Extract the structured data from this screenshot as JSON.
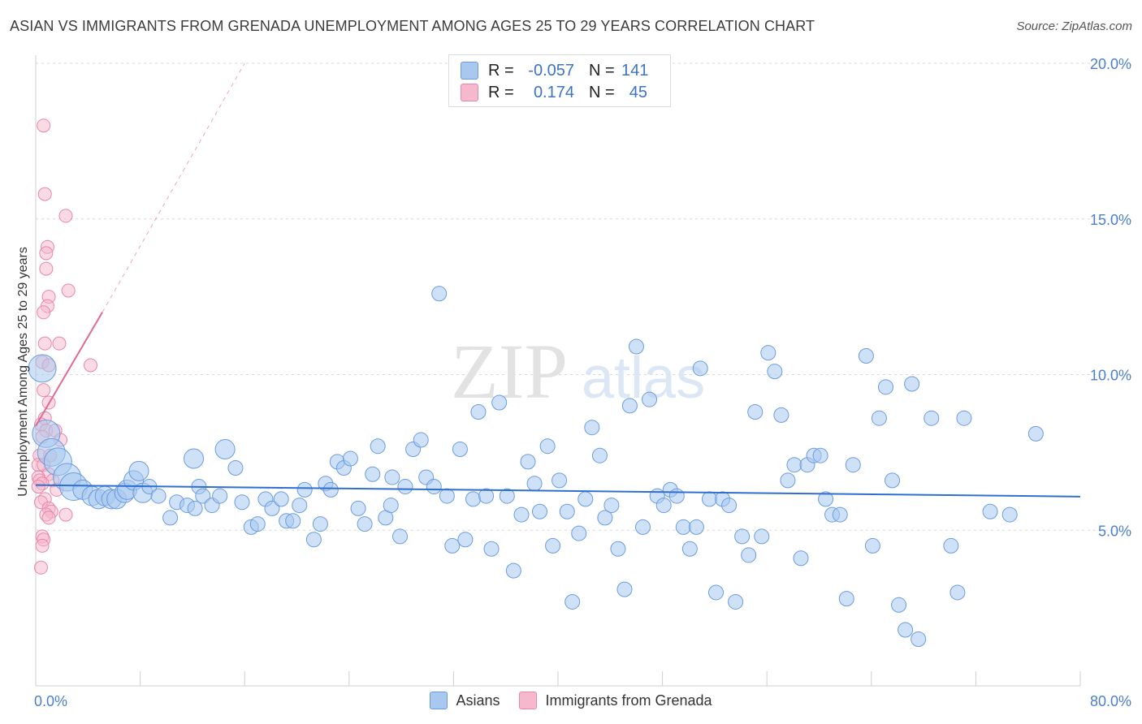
{
  "title": "ASIAN VS IMMIGRANTS FROM GRENADA UNEMPLOYMENT AMONG AGES 25 TO 29 YEARS CORRELATION CHART",
  "source": "Source: ZipAtlas.com",
  "watermark": {
    "zip": "ZIP",
    "atlas": "atlas"
  },
  "legend": {
    "rows": [
      {
        "r_label": "R =",
        "r_value": "-0.057",
        "n_label": "N =",
        "n_value": "141",
        "color": "#a8c8ef",
        "border": "#6b9ce0"
      },
      {
        "r_label": "R =",
        "r_value": "0.174",
        "n_label": "N =",
        "n_value": "45",
        "color": "#f6b8cc",
        "border": "#e887a6"
      }
    ]
  },
  "bottom_legend": [
    {
      "label": "Asians",
      "color": "#a8c8ef",
      "border": "#6b9ce0"
    },
    {
      "label": "Immigrants from Grenada",
      "color": "#f6b8cc",
      "border": "#e887a6"
    }
  ],
  "colors": {
    "blue_fill": "#a8c8ef",
    "blue_stroke": "#6b9ce0",
    "blue_line": "#2f6fd0",
    "pink_fill": "#f6b8cc",
    "pink_stroke": "#e887a6",
    "pink_line": "#e06a90",
    "grid": "#d8d8d8",
    "tick": "#4a7fd0"
  },
  "chart_data": {
    "type": "scatter",
    "title": "ASIAN VS IMMIGRANTS FROM GRENADA UNEMPLOYMENT AMONG AGES 25 TO 29 YEARS CORRELATION CHART",
    "xlabel": "",
    "ylabel": "Unemployment Among Ages 25 to 29 years",
    "xlim": [
      0,
      80
    ],
    "ylim": [
      0,
      20
    ],
    "x_tick_labels": [
      "0.0%",
      "80.0%"
    ],
    "y_ticks": [
      5,
      10,
      15,
      20
    ],
    "y_tick_labels": [
      "5.0%",
      "10.0%",
      "15.0%",
      "20.0%"
    ],
    "series": [
      {
        "name": "Asians",
        "r": -0.057,
        "n": 141,
        "trend": {
          "x": [
            0,
            80
          ],
          "y": [
            6.45,
            6.08
          ]
        },
        "points": [
          [
            0.5,
            10.2,
            3
          ],
          [
            0.8,
            8.1,
            3
          ],
          [
            1.2,
            7.5,
            3
          ],
          [
            1.7,
            7.2,
            3
          ],
          [
            2.4,
            6.7,
            3
          ],
          [
            2.9,
            6.4,
            3
          ],
          [
            3.6,
            6.3,
            2
          ],
          [
            4.3,
            6.1,
            2
          ],
          [
            4.8,
            6.0,
            2
          ],
          [
            5.3,
            6.1,
            2
          ],
          [
            5.8,
            6.0,
            2
          ],
          [
            6.2,
            6.0,
            2
          ],
          [
            6.8,
            6.2,
            2
          ],
          [
            7.0,
            6.3,
            2
          ],
          [
            7.5,
            6.6,
            2
          ],
          [
            7.9,
            6.9,
            2
          ],
          [
            8.2,
            6.2,
            2
          ],
          [
            8.7,
            6.4,
            1
          ],
          [
            9.4,
            6.1,
            1
          ],
          [
            10.3,
            5.4,
            1
          ],
          [
            10.8,
            5.9,
            1
          ],
          [
            11.6,
            5.8,
            1
          ],
          [
            12.1,
            7.3,
            2
          ],
          [
            12.5,
            6.4,
            1
          ],
          [
            12.8,
            6.1,
            1
          ],
          [
            13.5,
            5.8,
            1
          ],
          [
            14.1,
            6.1,
            1
          ],
          [
            14.5,
            7.6,
            2
          ],
          [
            15.3,
            7.0,
            1
          ],
          [
            15.8,
            5.9,
            1
          ],
          [
            16.5,
            5.1,
            1
          ],
          [
            17.0,
            5.2,
            1
          ],
          [
            17.6,
            6.0,
            1
          ],
          [
            18.1,
            5.7,
            1
          ],
          [
            18.8,
            6.0,
            1
          ],
          [
            19.2,
            5.3,
            1
          ],
          [
            19.7,
            5.3,
            1
          ],
          [
            20.2,
            5.8,
            1
          ],
          [
            20.6,
            6.3,
            1
          ],
          [
            21.3,
            4.7,
            1
          ],
          [
            21.8,
            5.2,
            1
          ],
          [
            22.2,
            6.5,
            1
          ],
          [
            22.6,
            6.3,
            1
          ],
          [
            23.1,
            7.2,
            1
          ],
          [
            23.6,
            7.0,
            1
          ],
          [
            24.1,
            7.3,
            1
          ],
          [
            24.7,
            5.7,
            1
          ],
          [
            25.2,
            5.2,
            1
          ],
          [
            25.8,
            6.8,
            1
          ],
          [
            26.2,
            7.7,
            1
          ],
          [
            26.8,
            5.4,
            1
          ],
          [
            27.3,
            6.7,
            1
          ],
          [
            27.9,
            4.8,
            1
          ],
          [
            28.3,
            6.4,
            1
          ],
          [
            28.9,
            7.6,
            1
          ],
          [
            29.5,
            7.9,
            1
          ],
          [
            29.9,
            6.7,
            1
          ],
          [
            30.5,
            6.4,
            1
          ],
          [
            30.9,
            12.6,
            1
          ],
          [
            31.5,
            6.1,
            1
          ],
          [
            31.9,
            4.5,
            1
          ],
          [
            32.5,
            7.6,
            1
          ],
          [
            32.9,
            4.7,
            1
          ],
          [
            33.5,
            6.0,
            1
          ],
          [
            33.9,
            8.8,
            1
          ],
          [
            34.5,
            6.1,
            1
          ],
          [
            34.9,
            4.4,
            1
          ],
          [
            35.5,
            9.1,
            1
          ],
          [
            36.1,
            6.1,
            1
          ],
          [
            36.6,
            3.7,
            1
          ],
          [
            37.2,
            5.5,
            1
          ],
          [
            37.7,
            7.2,
            1
          ],
          [
            38.2,
            6.5,
            1
          ],
          [
            38.6,
            5.6,
            1
          ],
          [
            39.2,
            7.7,
            1
          ],
          [
            39.6,
            4.5,
            1
          ],
          [
            40.1,
            6.6,
            1
          ],
          [
            40.7,
            5.6,
            1
          ],
          [
            41.1,
            2.7,
            1
          ],
          [
            41.6,
            4.9,
            1
          ],
          [
            42.1,
            6.0,
            1
          ],
          [
            42.6,
            8.3,
            1
          ],
          [
            43.2,
            7.4,
            1
          ],
          [
            43.6,
            5.4,
            1
          ],
          [
            44.1,
            5.8,
            1
          ],
          [
            44.6,
            4.4,
            1
          ],
          [
            45.1,
            3.1,
            1
          ],
          [
            45.5,
            9.0,
            1
          ],
          [
            46.0,
            10.9,
            1
          ],
          [
            46.5,
            5.1,
            1
          ],
          [
            47.0,
            9.2,
            1
          ],
          [
            47.6,
            6.1,
            1
          ],
          [
            48.1,
            5.8,
            1
          ],
          [
            48.6,
            6.3,
            1
          ],
          [
            49.1,
            6.1,
            1
          ],
          [
            49.6,
            5.1,
            1
          ],
          [
            50.1,
            4.4,
            1
          ],
          [
            50.6,
            5.1,
            1
          ],
          [
            50.9,
            10.2,
            1
          ],
          [
            51.6,
            6.0,
            1
          ],
          [
            52.1,
            3.0,
            1
          ],
          [
            52.6,
            6.0,
            1
          ],
          [
            53.1,
            5.8,
            1
          ],
          [
            53.6,
            2.7,
            1
          ],
          [
            54.1,
            4.8,
            1
          ],
          [
            54.6,
            4.2,
            1
          ],
          [
            55.1,
            8.8,
            1
          ],
          [
            55.6,
            4.8,
            1
          ],
          [
            56.1,
            10.7,
            1
          ],
          [
            56.6,
            10.1,
            1
          ],
          [
            57.1,
            8.7,
            1
          ],
          [
            57.6,
            6.6,
            1
          ],
          [
            58.1,
            7.1,
            1
          ],
          [
            58.6,
            4.1,
            1
          ],
          [
            59.1,
            7.1,
            1
          ],
          [
            59.6,
            7.4,
            1
          ],
          [
            60.1,
            7.4,
            1
          ],
          [
            60.5,
            6.0,
            1
          ],
          [
            61.0,
            5.5,
            1
          ],
          [
            61.6,
            5.5,
            1
          ],
          [
            62.1,
            2.8,
            1
          ],
          [
            62.6,
            7.1,
            1
          ],
          [
            63.6,
            10.6,
            1
          ],
          [
            64.1,
            4.5,
            1
          ],
          [
            64.6,
            8.6,
            1
          ],
          [
            65.1,
            9.6,
            1
          ],
          [
            65.6,
            6.6,
            1
          ],
          [
            66.1,
            2.6,
            1
          ],
          [
            66.6,
            1.8,
            1
          ],
          [
            67.1,
            9.7,
            1
          ],
          [
            67.6,
            1.5,
            1
          ],
          [
            68.6,
            8.6,
            1
          ],
          [
            70.1,
            4.5,
            1
          ],
          [
            71.1,
            8.6,
            1
          ],
          [
            70.6,
            3.0,
            1
          ],
          [
            73.1,
            5.6,
            1
          ],
          [
            74.6,
            5.5,
            1
          ],
          [
            76.6,
            8.1,
            1
          ],
          [
            12.2,
            5.7,
            1
          ],
          [
            27.2,
            5.8,
            1
          ]
        ]
      },
      {
        "name": "Immigrants from Grenada",
        "r": 0.174,
        "n": 45,
        "trend": {
          "x": [
            0,
            5.1
          ],
          "y": [
            8.35,
            12.0
          ]
        },
        "trend_dashed": {
          "x": [
            5.1,
            16.0
          ],
          "y": [
            12.0,
            20.0
          ]
        },
        "points": [
          [
            0.6,
            18.0
          ],
          [
            0.7,
            15.8
          ],
          [
            2.3,
            15.1
          ],
          [
            0.9,
            14.1
          ],
          [
            0.8,
            13.9
          ],
          [
            0.8,
            13.4
          ],
          [
            2.5,
            12.7
          ],
          [
            1.0,
            12.5
          ],
          [
            0.9,
            12.2
          ],
          [
            0.6,
            12.0
          ],
          [
            0.7,
            11.0
          ],
          [
            1.8,
            11.0
          ],
          [
            0.5,
            10.4
          ],
          [
            1.0,
            10.3
          ],
          [
            4.2,
            10.3
          ],
          [
            0.6,
            9.5
          ],
          [
            1.0,
            9.1
          ],
          [
            0.7,
            8.6
          ],
          [
            0.4,
            8.4
          ],
          [
            0.8,
            8.2
          ],
          [
            1.5,
            8.2
          ],
          [
            0.5,
            8.0
          ],
          [
            1.9,
            7.9
          ],
          [
            0.3,
            7.4
          ],
          [
            1.1,
            7.4
          ],
          [
            0.2,
            7.1
          ],
          [
            0.6,
            7.1
          ],
          [
            1.0,
            6.8
          ],
          [
            0.2,
            6.7
          ],
          [
            0.3,
            6.6
          ],
          [
            1.3,
            6.6
          ],
          [
            0.5,
            6.5
          ],
          [
            0.2,
            6.4
          ],
          [
            1.6,
            6.3
          ],
          [
            0.7,
            6.0
          ],
          [
            0.4,
            5.9
          ],
          [
            1.0,
            5.7
          ],
          [
            1.2,
            5.6
          ],
          [
            0.8,
            5.5
          ],
          [
            2.3,
            5.5
          ],
          [
            1.0,
            5.4
          ],
          [
            0.5,
            4.8
          ],
          [
            0.6,
            4.7
          ],
          [
            0.5,
            4.5
          ],
          [
            0.4,
            3.8
          ]
        ]
      }
    ]
  }
}
